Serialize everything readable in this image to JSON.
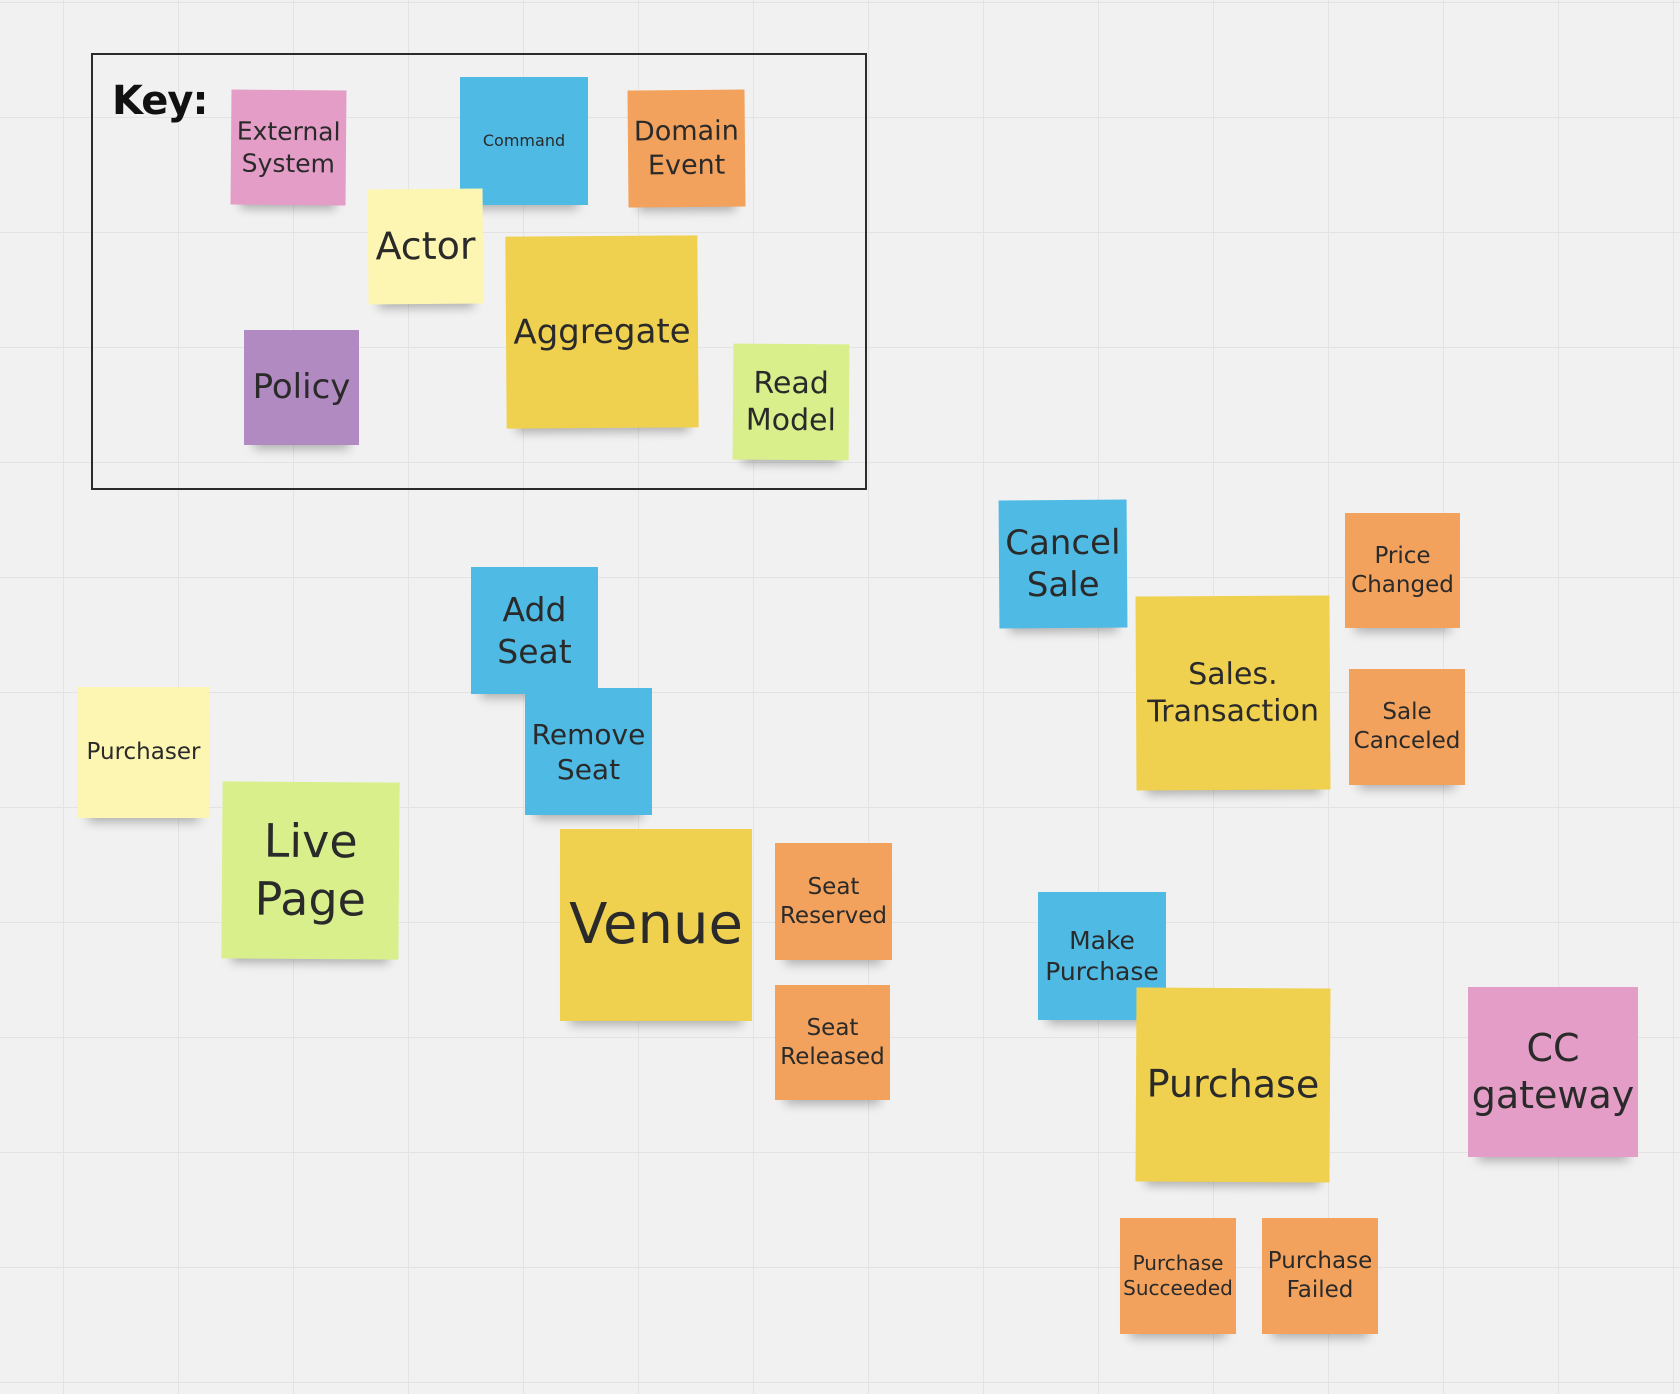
{
  "key": {
    "title": "Key:",
    "items": {
      "external_system": "External\nSystem",
      "command": "Command",
      "domain_event": "Domain\nEvent",
      "actor": "Actor",
      "aggregate": "Aggregate",
      "policy": "Policy",
      "read_model": "Read\nModel"
    }
  },
  "colors": {
    "external_system": "#e39dc6",
    "command": "#4fbbe5",
    "domain_event": "#f2a25c",
    "actor": "#fdf6b2",
    "aggregate": "#efd14f",
    "policy": "#b18ac2",
    "read_model": "#d8ef8c",
    "grid_background": "#f1f1f1"
  },
  "board": {
    "actors": {
      "purchaser": "Purchaser"
    },
    "read_models": {
      "live_page": "Live\nPage"
    },
    "commands": {
      "add_seat": "Add\nSeat",
      "remove_seat": "Remove\nSeat",
      "cancel_sale": "Cancel\nSale",
      "make_purchase": "Make\nPurchase"
    },
    "aggregates": {
      "venue": "Venue",
      "sales_transaction": "Sales.\nTransaction",
      "purchase": "Purchase"
    },
    "events": {
      "seat_reserved": "Seat\nReserved",
      "seat_released": "Seat\nReleased",
      "price_changed": "Price\nChanged",
      "sale_canceled": "Sale\nCanceled",
      "purchase_succeeded": "Purchase\nSucceeded",
      "purchase_failed": "Purchase\nFailed"
    },
    "external_systems": {
      "cc_gateway": "CC\ngateway"
    }
  }
}
